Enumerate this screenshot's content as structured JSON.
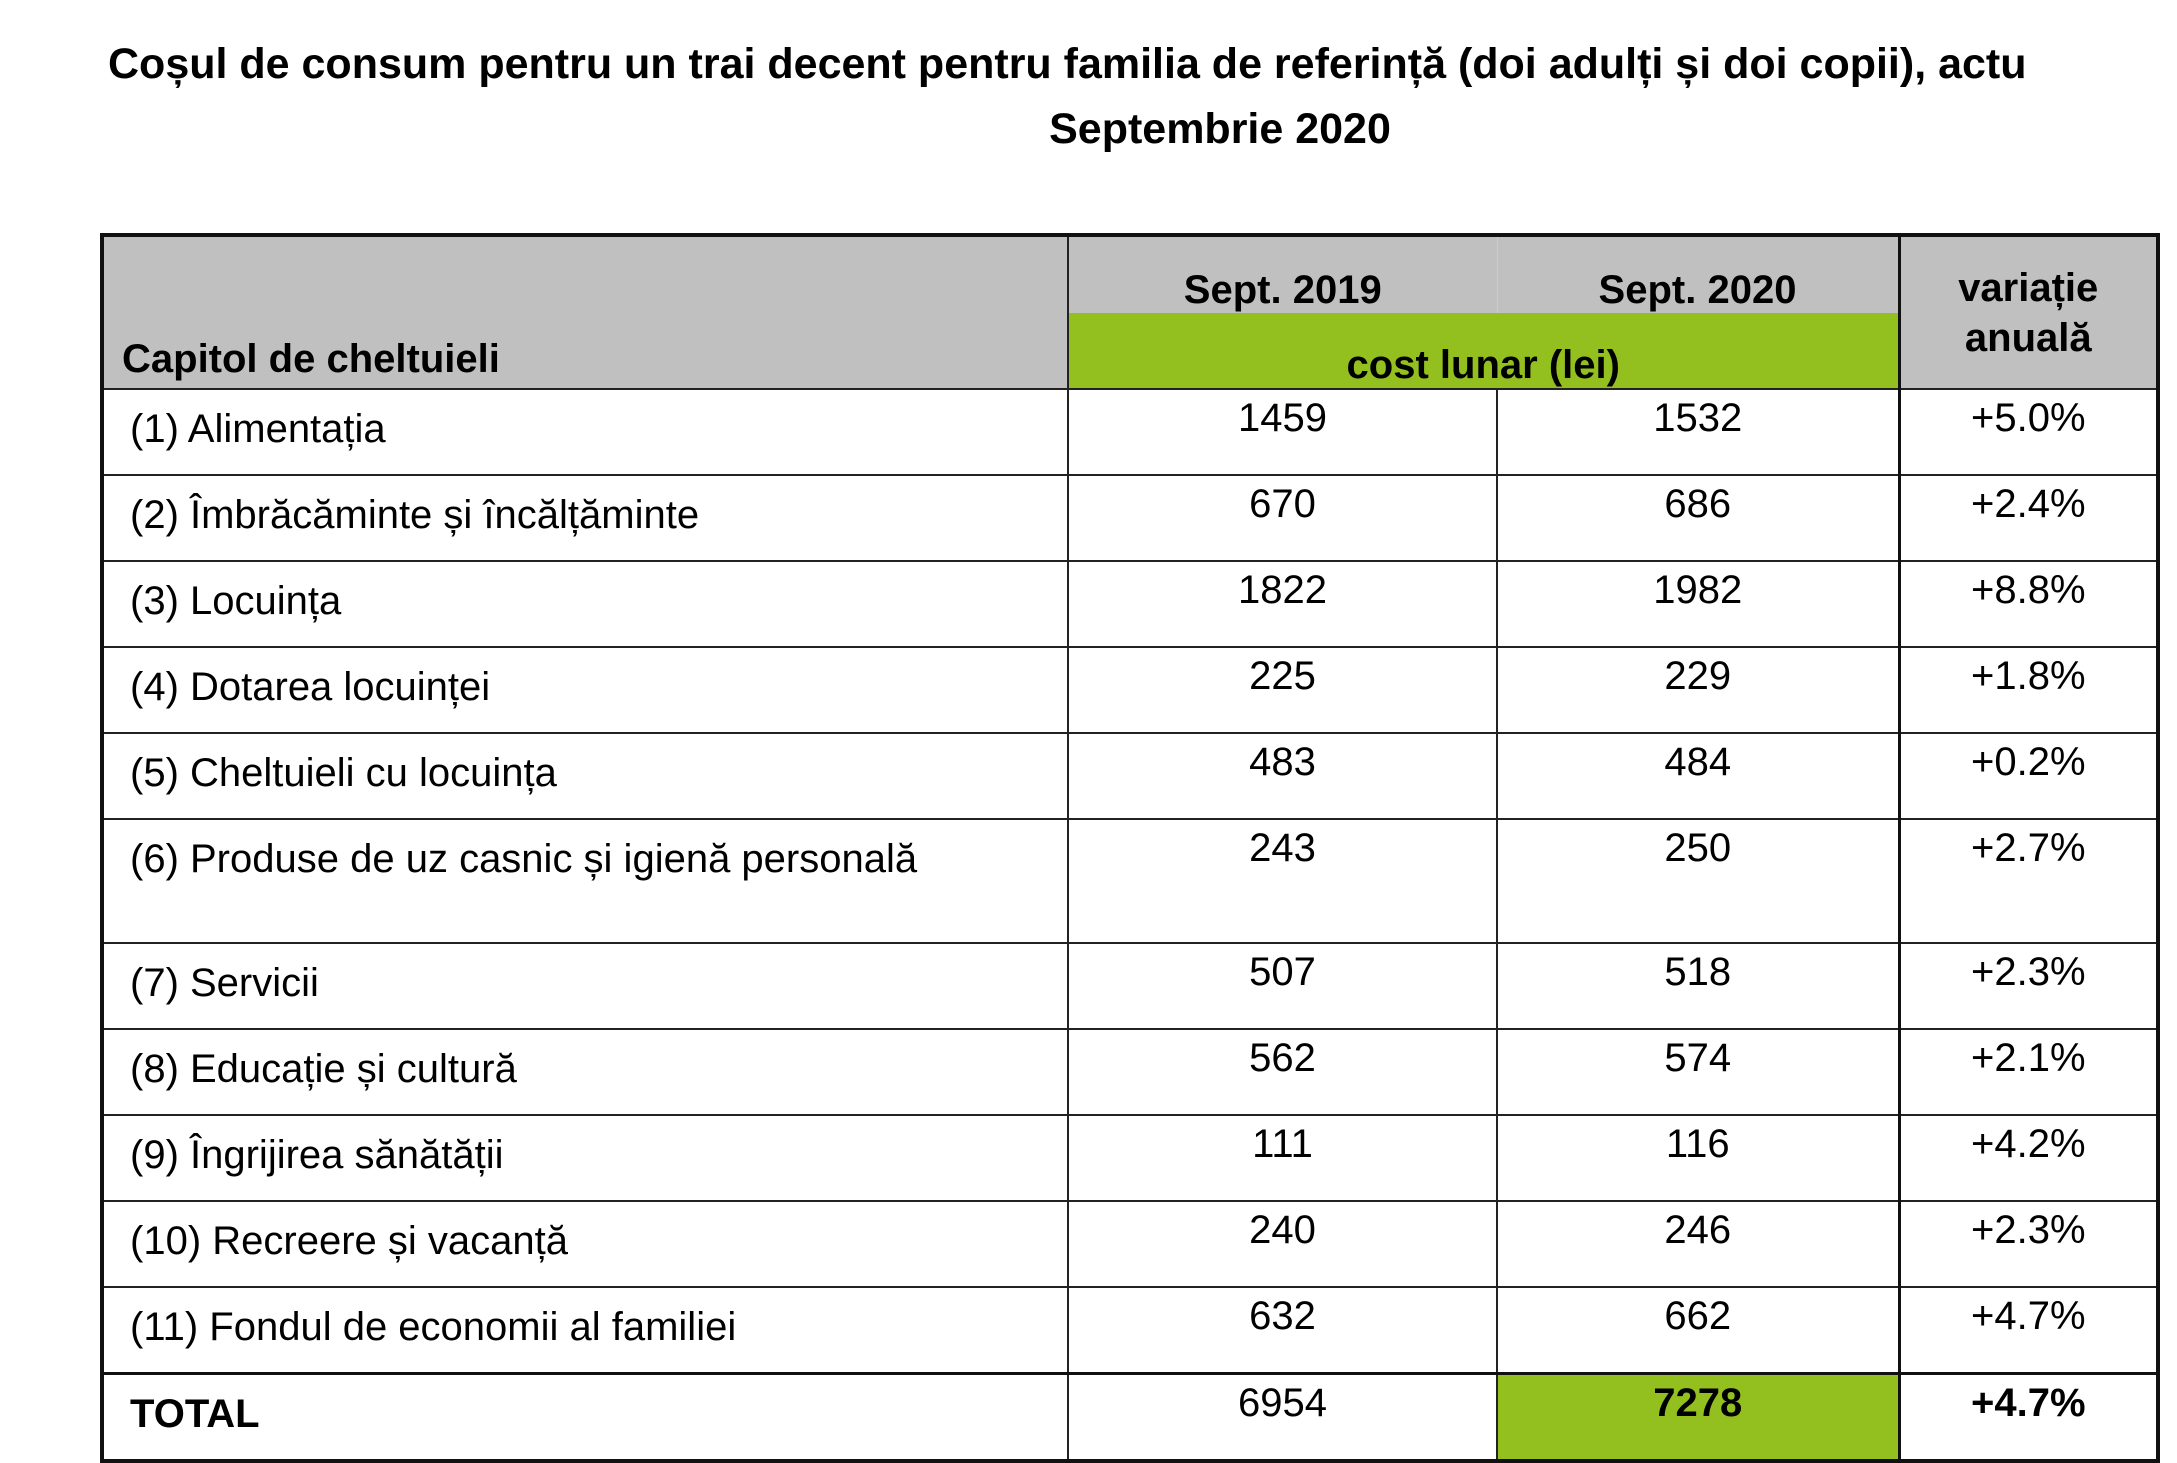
{
  "title": "Coșul de consum pentru un trai decent pentru familia de referință (doi adulți și doi copii), actu",
  "subtitle": "Septembrie 2020",
  "table": {
    "header": {
      "chapter": "Capitol de cheltuieli",
      "col_2019": "Sept. 2019",
      "col_2020": "Sept. 2020",
      "unit": "cost lunar (lei)",
      "variation": "variație anuală"
    },
    "rows": [
      {
        "label": "(1) Alimentația",
        "v2019": "1459",
        "v2020": "1532",
        "var": "+5.0%"
      },
      {
        "label": "(2) Îmbrăcăminte și încălțăminte",
        "v2019": "670",
        "v2020": "686",
        "var": "+2.4%"
      },
      {
        "label": "(3) Locuința",
        "v2019": "1822",
        "v2020": "1982",
        "var": "+8.8%"
      },
      {
        "label": "(4) Dotarea locuinței",
        "v2019": "225",
        "v2020": "229",
        "var": "+1.8%"
      },
      {
        "label": "(5) Cheltuieli cu locuința",
        "v2019": "483",
        "v2020": "484",
        "var": "+0.2%"
      },
      {
        "label": "(6) Produse de uz casnic și igienă personală",
        "v2019": "243",
        "v2020": "250",
        "var": "+2.7%"
      },
      {
        "label": "(7) Servicii",
        "v2019": "507",
        "v2020": "518",
        "var": "+2.3%"
      },
      {
        "label": "(8) Educație și cultură",
        "v2019": "562",
        "v2020": "574",
        "var": "+2.1%"
      },
      {
        "label": "(9) Îngrijirea sănătății",
        "v2019": "111",
        "v2020": "116",
        "var": "+4.2%"
      },
      {
        "label": "(10) Recreere și vacanță",
        "v2019": "240",
        "v2020": "246",
        "var": "+2.3%"
      },
      {
        "label": "(11) Fondul de economii al familiei",
        "v2019": "632",
        "v2020": "662",
        "var": "+4.7%"
      }
    ],
    "total": {
      "label": "TOTAL",
      "v2019": "6954",
      "v2020": "7278",
      "var": "+4.7%"
    }
  },
  "colors": {
    "header_gray": "#c0c0c0",
    "accent_green": "#93c01f"
  }
}
